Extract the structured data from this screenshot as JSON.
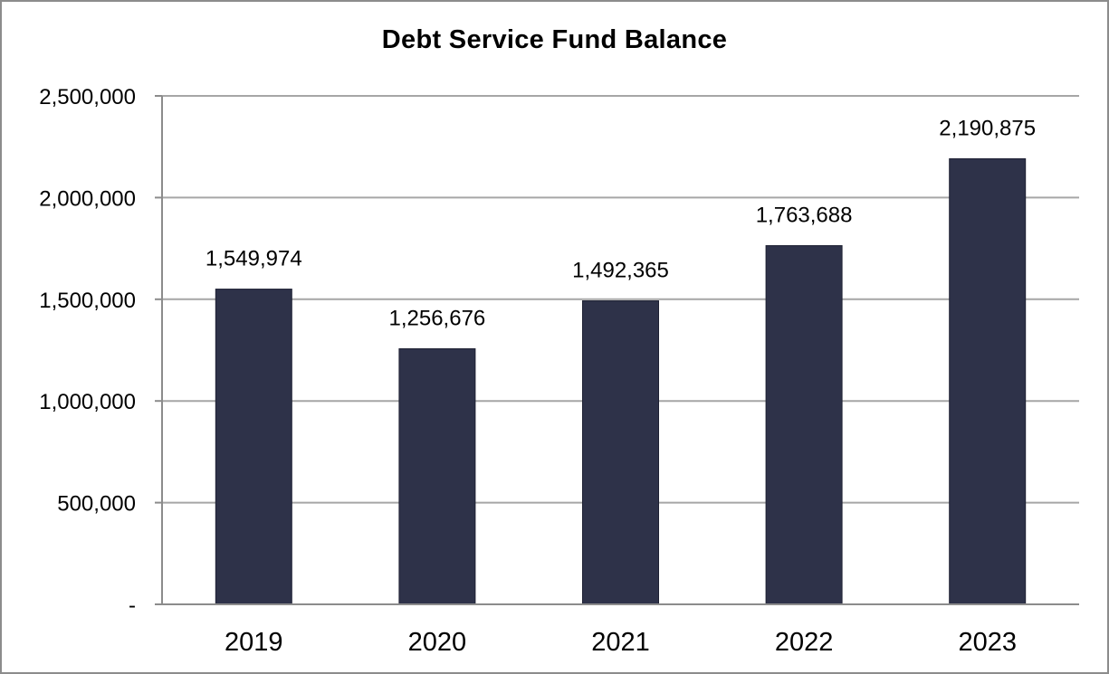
{
  "chart_data": {
    "type": "bar",
    "title": "Debt Service Fund Balance",
    "xlabel": "",
    "ylabel": "",
    "categories": [
      "2019",
      "2020",
      "2021",
      "2022",
      "2023"
    ],
    "values": [
      1549974,
      1256676,
      1492365,
      1763688,
      2190875
    ],
    "data_labels": [
      "1,549,974",
      "1,256,676",
      "1,492,365",
      "1,763,688",
      "2,190,875"
    ],
    "ylim": [
      0,
      2500000
    ],
    "yticks": [
      0,
      500000,
      1000000,
      1500000,
      2000000,
      2500000
    ],
    "ytick_labels": [
      "-",
      "500,000",
      "1,000,000",
      "1,500,000",
      "2,000,000",
      "2,500,000"
    ],
    "grid": true,
    "legend": "none",
    "colors": {
      "bar": "#2e3249",
      "grid": "#a6a6a6",
      "axis": "#8c8c8c",
      "frame": "#8c8c8c"
    }
  }
}
